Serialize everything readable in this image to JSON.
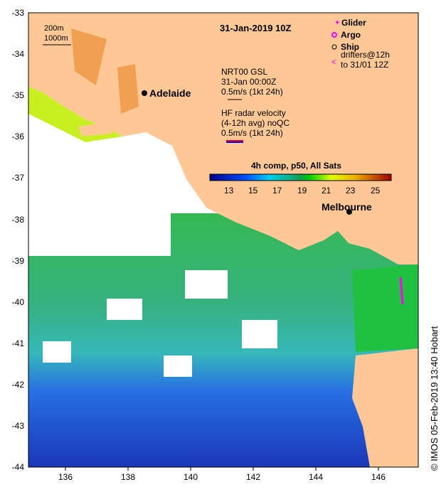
{
  "map": {
    "title": "31-Jan-2019 10Z",
    "scale_labels": [
      "200m",
      "1000m"
    ],
    "places": [
      {
        "name": "Adelaide"
      },
      {
        "name": "Melbourne"
      }
    ],
    "legend": {
      "glider": "Glider",
      "argo": "Argo",
      "ship": "Ship",
      "drifters_line1": "drifters@12h",
      "drifters_line2": "to 31/01 12Z"
    },
    "gsl": {
      "line1": "NRT00 GSL",
      "line2": "31-Jan 00:00Z",
      "line3": "0.5m/s (1kt 24h)"
    },
    "hf": {
      "line1": "HF radar velocity",
      "line2": "(4-12h avg) noQC",
      "line3": "0.5m/s (1kt 24h)"
    },
    "colorbar": {
      "title": "4h comp, p50, All Sats",
      "ticks": [
        "13",
        "15",
        "17",
        "19",
        "21",
        "23",
        "25"
      ],
      "range": [
        11.5,
        26.5
      ]
    },
    "lat_ticks": [
      "-33",
      "-34",
      "-35",
      "-36",
      "-37",
      "-38",
      "-39",
      "-40",
      "-41",
      "-42",
      "-43",
      "-44"
    ],
    "lon_ticks": [
      "136",
      "138",
      "140",
      "142",
      "144",
      "146"
    ],
    "credit": "© IMOS 05-Feb-2019 13:40 Hobart",
    "colors": {
      "land": "#fdc896",
      "glider": "#ff00ff"
    }
  }
}
